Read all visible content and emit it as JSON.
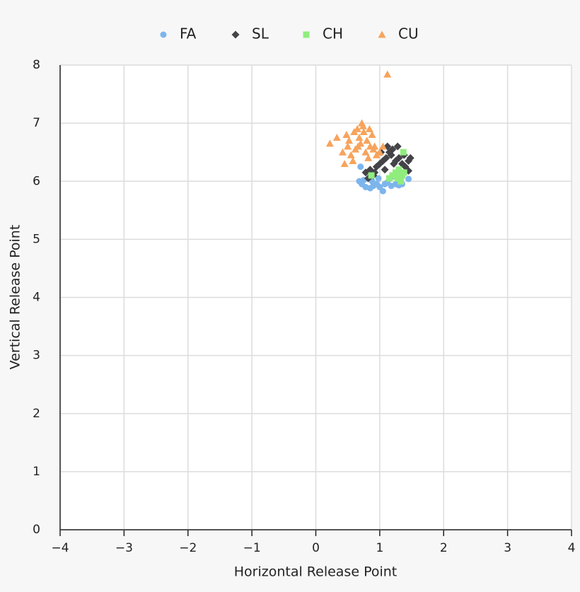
{
  "chart_data": {
    "type": "scatter",
    "x_label": "Horizontal Release Point",
    "y_label": "Vertical Release Point",
    "xlim": [
      -4,
      4
    ],
    "ylim": [
      0,
      8
    ],
    "xticks": [
      {
        "value": -4,
        "label": "−4"
      },
      {
        "value": -3,
        "label": "−3"
      },
      {
        "value": -2,
        "label": "−2"
      },
      {
        "value": -1,
        "label": "−1"
      },
      0,
      1,
      2,
      3,
      4
    ],
    "yticks": [
      0,
      1,
      2,
      3,
      4,
      5,
      6,
      7,
      8
    ],
    "grid": true,
    "legend": "top",
    "series": [
      {
        "name": "FA",
        "color": "#7cb5ec",
        "symbol": "circle",
        "x": [
          0.68,
          0.72,
          0.78,
          0.85,
          0.9,
          0.95,
          1.0,
          1.05,
          1.08,
          1.12,
          1.18,
          1.25,
          1.3,
          1.35,
          1.45,
          0.75,
          0.88,
          0.98,
          1.2,
          0.7
        ],
        "values": [
          6.0,
          5.95,
          5.9,
          5.88,
          5.92,
          5.95,
          5.9,
          5.83,
          5.95,
          5.98,
          5.92,
          5.95,
          5.93,
          5.95,
          6.04,
          6.02,
          6.0,
          6.05,
          6.08,
          6.25
        ]
      },
      {
        "name": "SL",
        "color": "#434348",
        "symbol": "diamond",
        "x": [
          0.78,
          0.85,
          0.9,
          0.95,
          1.0,
          1.05,
          1.1,
          1.12,
          1.15,
          1.18,
          1.2,
          1.25,
          1.3,
          1.35,
          1.4,
          1.45,
          1.48,
          0.82,
          0.92,
          1.02,
          1.08,
          1.22,
          1.28,
          1.38,
          1.45
        ],
        "values": [
          6.15,
          6.2,
          6.1,
          6.25,
          6.3,
          6.35,
          6.4,
          6.6,
          6.5,
          6.45,
          6.55,
          6.35,
          6.4,
          6.3,
          6.25,
          6.18,
          6.4,
          6.05,
          6.15,
          6.5,
          6.2,
          6.3,
          6.6,
          6.45,
          6.35
        ]
      },
      {
        "name": "CH",
        "color": "#90ed7d",
        "symbol": "square",
        "x": [
          0.87,
          1.37,
          1.15,
          1.2,
          1.25,
          1.3,
          1.35,
          1.28,
          1.33,
          1.38
        ],
        "values": [
          6.1,
          6.5,
          6.05,
          6.1,
          6.15,
          6.2,
          6.1,
          6.05,
          6.0,
          6.15
        ]
      },
      {
        "name": "CU",
        "color": "#f7a35c",
        "symbol": "triangle",
        "x": [
          0.22,
          0.33,
          0.42,
          0.45,
          0.5,
          0.52,
          0.55,
          0.6,
          0.62,
          0.65,
          0.68,
          0.7,
          0.72,
          0.75,
          0.78,
          0.8,
          0.82,
          0.85,
          0.88,
          0.9,
          0.95,
          1.0,
          1.05,
          0.48,
          0.58,
          0.66,
          0.74,
          0.84,
          0.92,
          1.12
        ],
        "values": [
          6.65,
          6.75,
          6.5,
          6.3,
          6.6,
          6.7,
          6.45,
          6.85,
          6.55,
          6.9,
          6.75,
          6.65,
          7.0,
          6.85,
          6.5,
          6.7,
          6.4,
          6.6,
          6.8,
          6.55,
          6.45,
          6.5,
          6.6,
          6.8,
          6.35,
          6.6,
          6.95,
          6.9,
          6.6,
          7.84
        ]
      }
    ]
  }
}
